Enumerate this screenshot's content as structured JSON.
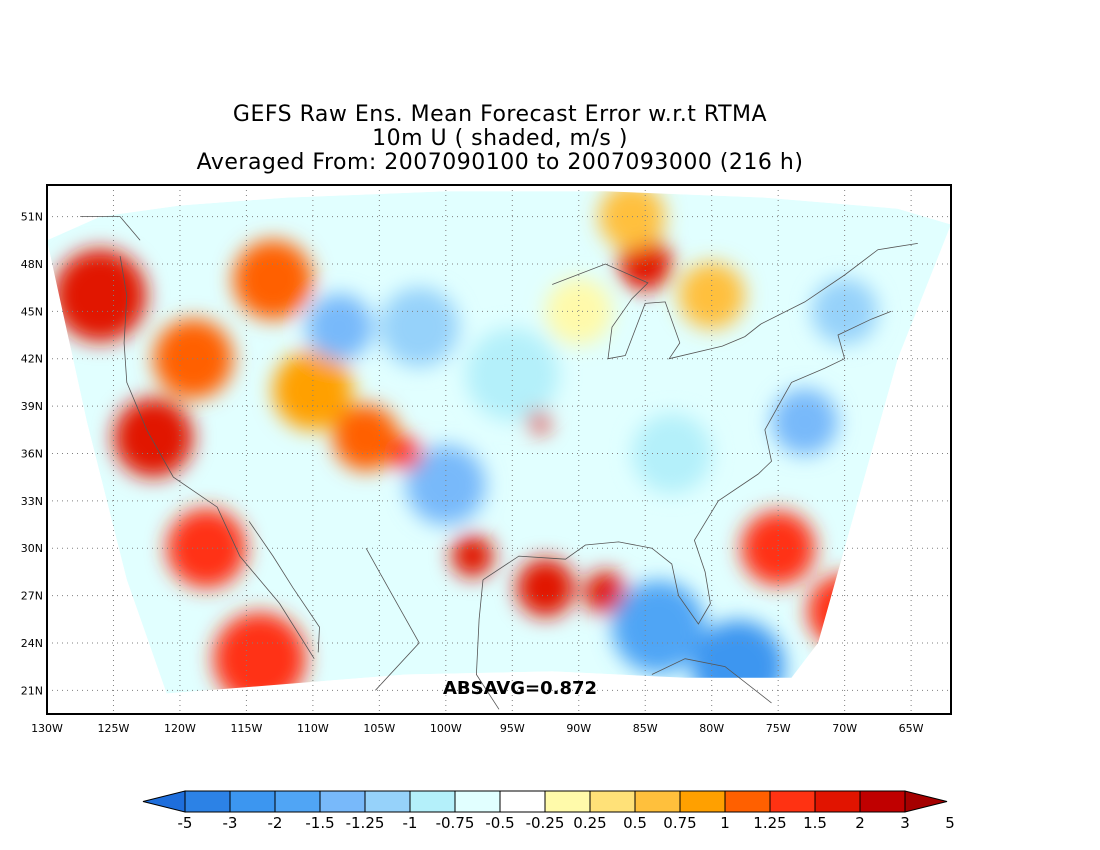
{
  "title": {
    "line1": "GEFS Raw Ens. Mean Forecast Error w.r.t RTMA",
    "line2": "10m U ( shaded, m/s )",
    "line3": "Averaged From: 2007090100 to 2007093000 (216 h)"
  },
  "map": {
    "lon_range": [
      -130,
      -62
    ],
    "lat_range": [
      19.5,
      53
    ],
    "lon_ticks": [
      "130W",
      "125W",
      "120W",
      "115W",
      "110W",
      "105W",
      "100W",
      "95W",
      "90W",
      "85W",
      "80W",
      "75W",
      "70W",
      "65W"
    ],
    "lat_ticks": [
      "21N",
      "24N",
      "27N",
      "30N",
      "33N",
      "36N",
      "39N",
      "42N",
      "45N",
      "48N",
      "51N"
    ],
    "grid": "dotted",
    "annotation": "ABSAVG=0.872"
  },
  "colorbar": {
    "levels": [
      "-5",
      "-3",
      "-2",
      "-1.5",
      "-1.25",
      "-1",
      "-0.75",
      "-0.5",
      "-0.25",
      "0.25",
      "0.5",
      "0.75",
      "1",
      "1.25",
      "1.5",
      "2",
      "3",
      "5"
    ],
    "colors": [
      "#1e6edc",
      "#2c82e6",
      "#3c96f0",
      "#50a5f5",
      "#78b9fa",
      "#96d2fa",
      "#b4f0fa",
      "#e1ffff",
      "#ffffff",
      "#fffaaa",
      "#ffe178",
      "#ffc03c",
      "#ffa000",
      "#ff6000",
      "#ff3212",
      "#e11400",
      "#c00000",
      "#a50000"
    ]
  },
  "regions": [
    {
      "lon": -126,
      "lat": 46,
      "r": 3.5,
      "color": "#e11400"
    },
    {
      "lon": -122,
      "lat": 37,
      "r": 3.0,
      "color": "#e11400"
    },
    {
      "lon": -118,
      "lat": 30,
      "r": 3.0,
      "color": "#ff3212"
    },
    {
      "lon": -114,
      "lat": 23,
      "r": 3.5,
      "color": "#ff3212"
    },
    {
      "lon": -119,
      "lat": 42,
      "r": 3.0,
      "color": "#ff6000"
    },
    {
      "lon": -113,
      "lat": 47,
      "r": 3.0,
      "color": "#ff6000"
    },
    {
      "lon": -110,
      "lat": 40,
      "r": 3.0,
      "color": "#ffa000"
    },
    {
      "lon": -106,
      "lat": 37,
      "r": 2.5,
      "color": "#ff6000"
    },
    {
      "lon": -108,
      "lat": 44,
      "r": 2.5,
      "color": "#78b9fa"
    },
    {
      "lon": -102,
      "lat": 44,
      "r": 3.0,
      "color": "#96d2fa"
    },
    {
      "lon": -100,
      "lat": 34,
      "r": 3.0,
      "color": "#78b9fa"
    },
    {
      "lon": -95,
      "lat": 41,
      "r": 3.5,
      "color": "#b4f0fa"
    },
    {
      "lon": -92.5,
      "lat": 27.5,
      "r": 2.2,
      "color": "#e11400"
    },
    {
      "lon": -88,
      "lat": 27.2,
      "r": 1.6,
      "color": "#e11400"
    },
    {
      "lon": -85,
      "lat": 48,
      "r": 2.0,
      "color": "#e11400"
    },
    {
      "lon": -80,
      "lat": 46,
      "r": 2.5,
      "color": "#ffc03c"
    },
    {
      "lon": -86,
      "lat": 51,
      "r": 2.5,
      "color": "#ffc03c"
    },
    {
      "lon": -84,
      "lat": 25,
      "r": 3.5,
      "color": "#50a5f5"
    },
    {
      "lon": -78,
      "lat": 22.5,
      "r": 3.5,
      "color": "#3c96f0"
    },
    {
      "lon": -75,
      "lat": 30,
      "r": 2.8,
      "color": "#ff3212"
    },
    {
      "lon": -70,
      "lat": 26,
      "r": 2.8,
      "color": "#ff3212"
    },
    {
      "lon": -73,
      "lat": 38,
      "r": 2.5,
      "color": "#78b9fa"
    },
    {
      "lon": -70,
      "lat": 45,
      "r": 2.5,
      "color": "#96d2fa"
    },
    {
      "lon": -83,
      "lat": 36,
      "r": 3.0,
      "color": "#b4f0fa"
    },
    {
      "lon": -90,
      "lat": 45,
      "r": 2.5,
      "color": "#fffaaa"
    },
    {
      "lon": -98,
      "lat": 29.5,
      "r": 1.6,
      "color": "#e11400"
    },
    {
      "lon": -93,
      "lat": 38,
      "r": 0.8,
      "color": "#e11400"
    },
    {
      "lon": -103,
      "lat": 36,
      "r": 1.2,
      "color": "#ff3212"
    }
  ]
}
